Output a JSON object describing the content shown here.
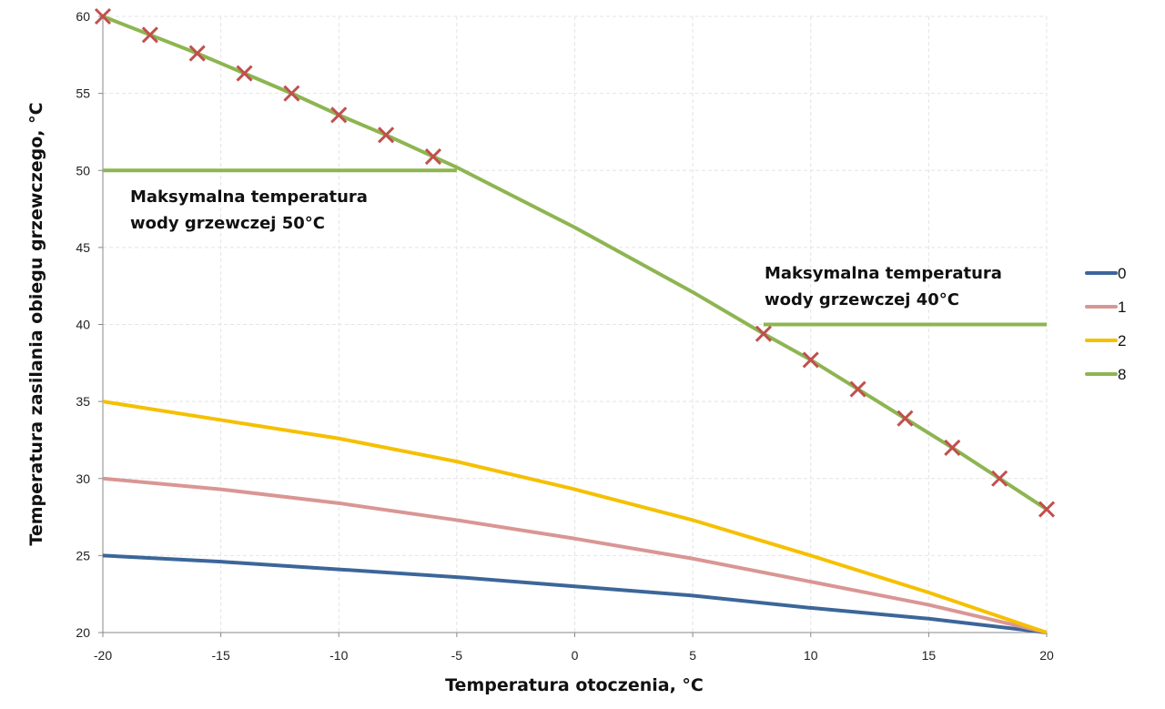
{
  "chart_data": {
    "type": "line",
    "title": "",
    "xlabel": "Temperatura otoczenia, °C",
    "ylabel": "Temperatura zasilania obiegu grzewczego, °C",
    "xlim": [
      -20,
      20
    ],
    "ylim": [
      20,
      60
    ],
    "xticks": [
      -20,
      -15,
      -10,
      -5,
      0,
      5,
      10,
      15,
      20
    ],
    "yticks": [
      20,
      25,
      30,
      35,
      40,
      45,
      50,
      55,
      60
    ],
    "grid": true,
    "legend_placement": "right",
    "series": [
      {
        "name": "0",
        "color": "#3c6699",
        "x": [
          -20,
          -15,
          -10,
          -5,
          0,
          5,
          10,
          15,
          20
        ],
        "y": [
          25,
          24.6,
          24.1,
          23.6,
          23.0,
          22.4,
          21.6,
          20.9,
          20
        ]
      },
      {
        "name": "1",
        "color": "#d99694",
        "x": [
          -20,
          -15,
          -10,
          -5,
          0,
          5,
          10,
          15,
          20
        ],
        "y": [
          30,
          29.3,
          28.4,
          27.3,
          26.1,
          24.8,
          23.3,
          21.8,
          20
        ]
      },
      {
        "name": "2",
        "color": "#f5c000",
        "x": [
          -20,
          -15,
          -10,
          -5,
          0,
          5,
          10,
          15,
          20
        ],
        "y": [
          35,
          33.8,
          32.6,
          31.1,
          29.3,
          27.3,
          25.0,
          22.6,
          20
        ]
      },
      {
        "name": "8",
        "color": "#8db551",
        "x": [
          -20,
          -18,
          -16,
          -14,
          -12,
          -10,
          -8,
          -6,
          -5,
          0,
          5,
          8,
          10,
          12,
          14,
          16,
          18,
          20
        ],
        "y": [
          60,
          58.8,
          57.6,
          56.3,
          55.0,
          53.6,
          52.3,
          50.9,
          50.2,
          46.3,
          42.1,
          39.4,
          37.7,
          35.8,
          33.9,
          32.0,
          30.0,
          28.0
        ]
      }
    ],
    "limit_lines": [
      {
        "y": 50,
        "x": [
          -20,
          -5
        ],
        "color": "#8db551"
      },
      {
        "y": 40,
        "x": [
          8,
          20
        ],
        "color": "#8db551"
      }
    ],
    "markers": {
      "symbol": "x",
      "color": "#c0504d",
      "x": [
        -20,
        -18,
        -16,
        -14,
        -12,
        -10,
        -8,
        -6,
        8,
        10,
        12,
        14,
        16,
        18,
        20
      ],
      "y": [
        60,
        58.8,
        57.6,
        56.3,
        55.0,
        53.6,
        52.3,
        50.9,
        39.4,
        37.7,
        35.8,
        33.9,
        32.0,
        30.0,
        28.0
      ]
    },
    "annotations": [
      {
        "lines": [
          "Maksymalna temperatura",
          "wody grzewczej 50°C"
        ]
      },
      {
        "lines": [
          "Maksymalna temperatura",
          "wody grzewczej 40°C"
        ]
      }
    ]
  }
}
